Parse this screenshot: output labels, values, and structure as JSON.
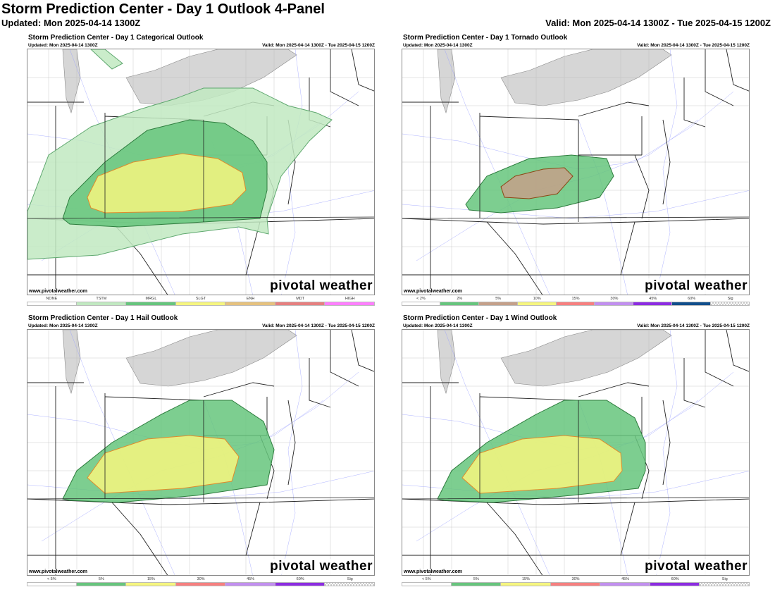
{
  "header": {
    "title": "Storm Prediction Center - Day 1 Outlook 4-Panel",
    "updated": "Updated: Mon 2025-04-14 1300Z",
    "valid": "Valid: Mon 2025-04-14 1300Z - Tue 2025-04-15 1200Z"
  },
  "panels": [
    {
      "title": "Storm Prediction Center - Day 1 Categorical Outlook",
      "updated": "Updated: Mon 2025-04-14 1300Z",
      "valid": "Valid: Mon 2025-04-14 1300Z - Tue 2025-04-15 1200Z",
      "site": "www.pivotalweather.com",
      "logo": "pivotal weather",
      "legend": [
        {
          "label": "NONE",
          "color": "#ffffff"
        },
        {
          "label": "TSTM",
          "color": "#c1e9c1"
        },
        {
          "label": "MRGL",
          "color": "#66c57d"
        },
        {
          "label": "SLGT",
          "color": "#f6f67f"
        },
        {
          "label": "ENH",
          "color": "#e6c27e"
        },
        {
          "label": "MDT",
          "color": "#e67f7f"
        },
        {
          "label": "HIGH",
          "color": "#ff7fff"
        }
      ]
    },
    {
      "title": "Storm Prediction Center - Day 1 Tornado Outlook",
      "updated": "Updated: Mon 2025-04-14 1300Z",
      "valid": "Valid: Mon 2025-04-14 1300Z - Tue 2025-04-15 1200Z",
      "site": "www.pivotalweather.com",
      "logo": "pivotal weather",
      "legend": [
        {
          "label": "< 2%",
          "color": "#ffffff"
        },
        {
          "label": "2%",
          "color": "#66c57d"
        },
        {
          "label": "5%",
          "color": "#c4a08a"
        },
        {
          "label": "10%",
          "color": "#f6f67f"
        },
        {
          "label": "15%",
          "color": "#f77f7f"
        },
        {
          "label": "30%",
          "color": "#c28ff0"
        },
        {
          "label": "45%",
          "color": "#8c2be2"
        },
        {
          "label": "60%",
          "color": "#104e8b"
        },
        {
          "label": "Sig",
          "color": "sig"
        }
      ]
    },
    {
      "title": "Storm Prediction Center - Day 1 Hail Outlook",
      "updated": "Updated: Mon 2025-04-14 1300Z",
      "valid": "Valid: Mon 2025-04-14 1300Z - Tue 2025-04-15 1200Z",
      "site": "www.pivotalweather.com",
      "logo": "pivotal weather",
      "legend": [
        {
          "label": "< 5%",
          "color": "#ffffff"
        },
        {
          "label": "5%",
          "color": "#66c57d"
        },
        {
          "label": "15%",
          "color": "#f6f67f"
        },
        {
          "label": "30%",
          "color": "#f77f7f"
        },
        {
          "label": "45%",
          "color": "#c28ff0"
        },
        {
          "label": "60%",
          "color": "#8c2be2"
        },
        {
          "label": "Sig",
          "color": "sig"
        }
      ]
    },
    {
      "title": "Storm Prediction Center - Day 1 Wind Outlook",
      "updated": "Updated: Mon 2025-04-14 1300Z",
      "valid": "Valid: Mon 2025-04-14 1300Z - Tue 2025-04-15 1200Z",
      "site": "www.pivotalweather.com",
      "logo": "pivotal weather",
      "legend": [
        {
          "label": "< 5%",
          "color": "#ffffff"
        },
        {
          "label": "5%",
          "color": "#66c57d"
        },
        {
          "label": "15%",
          "color": "#f6f67f"
        },
        {
          "label": "30%",
          "color": "#f77f7f"
        },
        {
          "label": "45%",
          "color": "#c28ff0"
        },
        {
          "label": "60%",
          "color": "#8c2be2"
        },
        {
          "label": "Sig",
          "color": "sig"
        }
      ]
    }
  ]
}
